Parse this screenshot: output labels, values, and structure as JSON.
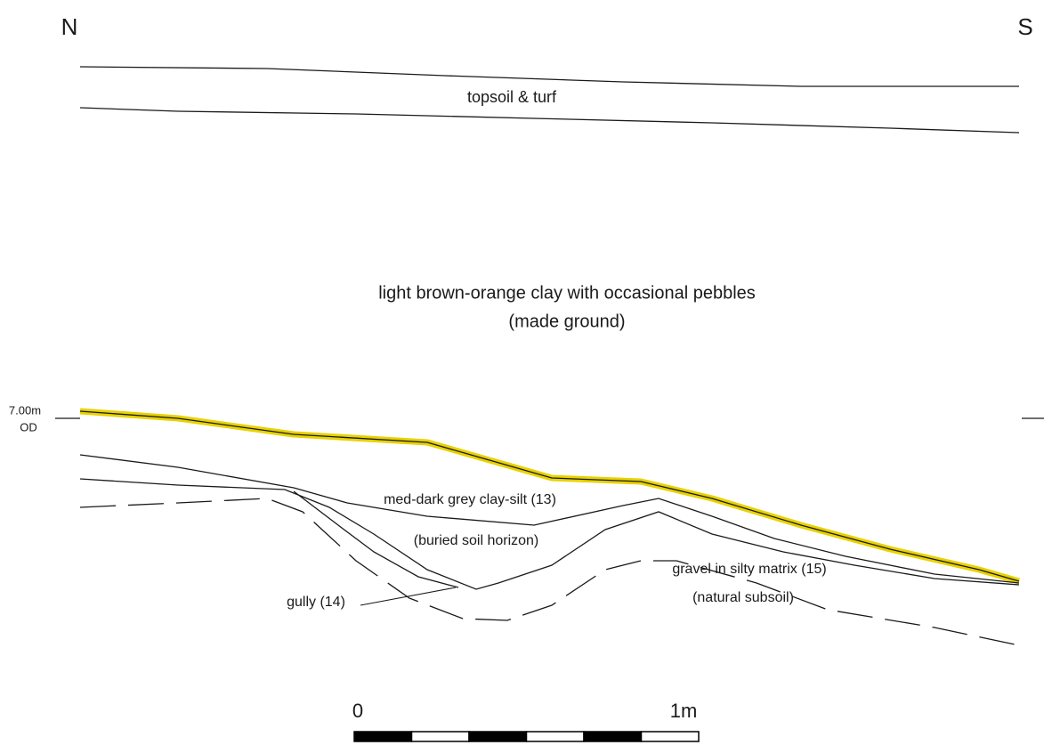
{
  "orientation": {
    "north": "N",
    "south": "S"
  },
  "layers": {
    "topsoil": "topsoil & turf",
    "made_ground": {
      "description": "light brown-orange clay with occasional pebbles",
      "note": "(made ground)"
    },
    "clay_silt": {
      "description": "med-dark grey clay-silt (13)",
      "note": "(buried soil horizon)"
    },
    "gully": "gully (14)",
    "gravel": {
      "description": "gravel in silty matrix (15)",
      "note": "(natural subsoil)"
    }
  },
  "datum": {
    "level": "7.00m",
    "unit": "OD"
  },
  "scale": {
    "start": "0",
    "end": "1m"
  }
}
